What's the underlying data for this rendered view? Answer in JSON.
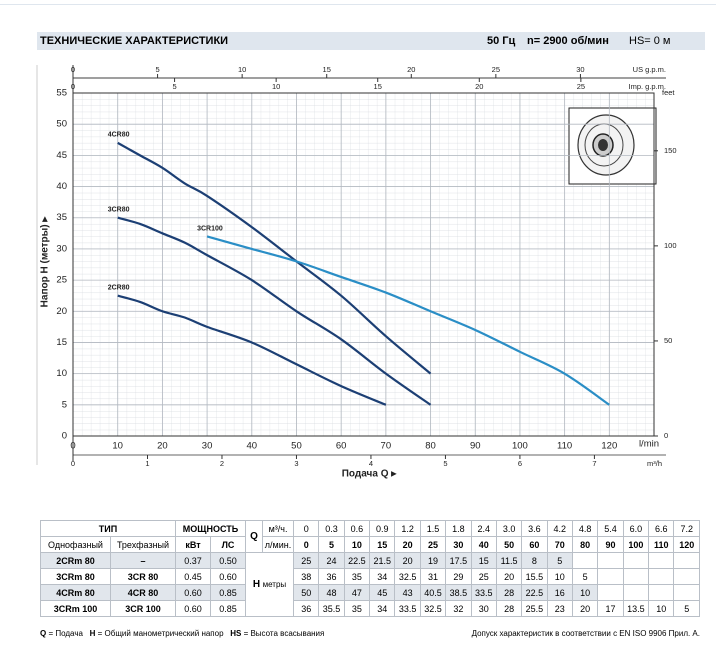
{
  "header": {
    "title": "ТЕХНИЧЕСКИЕ ХАРАКТЕРИСТИКИ",
    "frequency": "50 Гц",
    "speed": "n= 2900 об/мин",
    "suction": "HS= 0 м"
  },
  "chart_data": {
    "type": "line",
    "x_label": "Подача Q ▸",
    "x_unit": "l/min",
    "y_label": "Напор H (метры) ▸",
    "xlim": [
      0,
      130
    ],
    "xticks": [
      0,
      10,
      20,
      30,
      40,
      50,
      60,
      70,
      80,
      90,
      100,
      110,
      120
    ],
    "ylim": [
      0,
      55
    ],
    "yticks": [
      0,
      5,
      10,
      15,
      20,
      25,
      30,
      35,
      40,
      45,
      50,
      55
    ],
    "grid": true,
    "secondary_axes": [
      {
        "label": "US g.p.m.",
        "side": "top",
        "lim": [
          0,
          34.35
        ],
        "ticks": [
          0,
          5,
          10,
          15,
          20,
          25,
          30
        ]
      },
      {
        "label": "Imp. g.p.m.",
        "side": "top",
        "lim": [
          0,
          28.6
        ],
        "ticks": [
          0,
          5,
          10,
          15,
          20,
          25
        ]
      },
      {
        "label": "m³/h",
        "side": "bottom",
        "lim": [
          0,
          7.8
        ],
        "ticks": [
          0,
          1,
          2,
          3,
          4,
          5,
          6,
          7
        ]
      },
      {
        "label": "feet",
        "side": "right",
        "lim": [
          0,
          180.4
        ],
        "ticks": [
          0,
          50,
          100,
          150
        ]
      }
    ],
    "series": [
      {
        "name": "4CR80",
        "color": "#1c3f74",
        "x": [
          10,
          15,
          20,
          25,
          30,
          40,
          50,
          60,
          70,
          80
        ],
        "values": [
          47,
          45,
          43,
          40.5,
          38.5,
          33.5,
          28,
          22.5,
          16,
          10
        ]
      },
      {
        "name": "3CR80",
        "color": "#1c3f74",
        "x": [
          10,
          15,
          20,
          25,
          30,
          40,
          50,
          60,
          70,
          80
        ],
        "values": [
          35,
          34,
          32.5,
          31,
          29,
          25,
          20,
          15.5,
          10,
          5
        ]
      },
      {
        "name": "2CR80",
        "color": "#1c3f74",
        "x": [
          10,
          15,
          20,
          25,
          30,
          40,
          50,
          60,
          70
        ],
        "values": [
          22.5,
          21.5,
          20,
          19,
          17.5,
          15,
          11.5,
          8,
          5
        ]
      },
      {
        "name": "3CR100",
        "color": "#2a8ec6",
        "x": [
          30,
          40,
          50,
          60,
          70,
          80,
          90,
          100,
          110,
          120
        ],
        "values": [
          32,
          30,
          28,
          25.5,
          23,
          20,
          17,
          13.5,
          10,
          5
        ]
      }
    ]
  },
  "table": {
    "group_headers": [
      "ТИП",
      "МОЩНОСТЬ"
    ],
    "sub_headers": [
      "Однофазный",
      "Трехфазный",
      "кВт",
      "ЛС"
    ],
    "q_label": "Q",
    "q_units": [
      "м³/ч.",
      "л/мин."
    ],
    "flow_m3h": [
      "0",
      "0.3",
      "0.6",
      "0.9",
      "1.2",
      "1.5",
      "1.8",
      "2.4",
      "3.0",
      "3.6",
      "4.2",
      "4.8",
      "5.4",
      "6.0",
      "6.6",
      "7.2"
    ],
    "flow_lmin": [
      0,
      5,
      10,
      15,
      20,
      25,
      30,
      40,
      50,
      60,
      70,
      80,
      90,
      100,
      110,
      120
    ],
    "h_label": "H",
    "h_unit": "метры",
    "rows": [
      {
        "single": "2CRm 80",
        "three": "–",
        "kw": "0.37",
        "hp": "0.50",
        "head": [
          25,
          24,
          22.5,
          21.5,
          20,
          19,
          17.5,
          15,
          11.5,
          8,
          5
        ]
      },
      {
        "single": "3CRm 80",
        "three": "3CR 80",
        "kw": "0.45",
        "hp": "0.60",
        "head": [
          38,
          36,
          35,
          34,
          32.5,
          31,
          29,
          25,
          20,
          15.5,
          10,
          5
        ]
      },
      {
        "single": "4CRm 80",
        "three": "4CR 80",
        "kw": "0.60",
        "hp": "0.85",
        "head": [
          50,
          48,
          47,
          45,
          43,
          40.5,
          38.5,
          33.5,
          28,
          22.5,
          16,
          10
        ]
      },
      {
        "single": "3CRm 100",
        "three": "3CR 100",
        "kw": "0.60",
        "hp": "0.85",
        "head": [
          36,
          35.5,
          35,
          34,
          33.5,
          32.5,
          32,
          30,
          28,
          25.5,
          23,
          20,
          17,
          13.5,
          10,
          5
        ]
      }
    ]
  },
  "footer": {
    "notes": [
      {
        "key": "Q",
        "text": "= Подача"
      },
      {
        "key": "H",
        "text": "= Общий манометрический напор"
      },
      {
        "key": "HS",
        "text": "= Высота всасывания"
      }
    ],
    "tolerance": "Допуск характеристик в соответствии с EN ISO 9906 Прил. A."
  }
}
